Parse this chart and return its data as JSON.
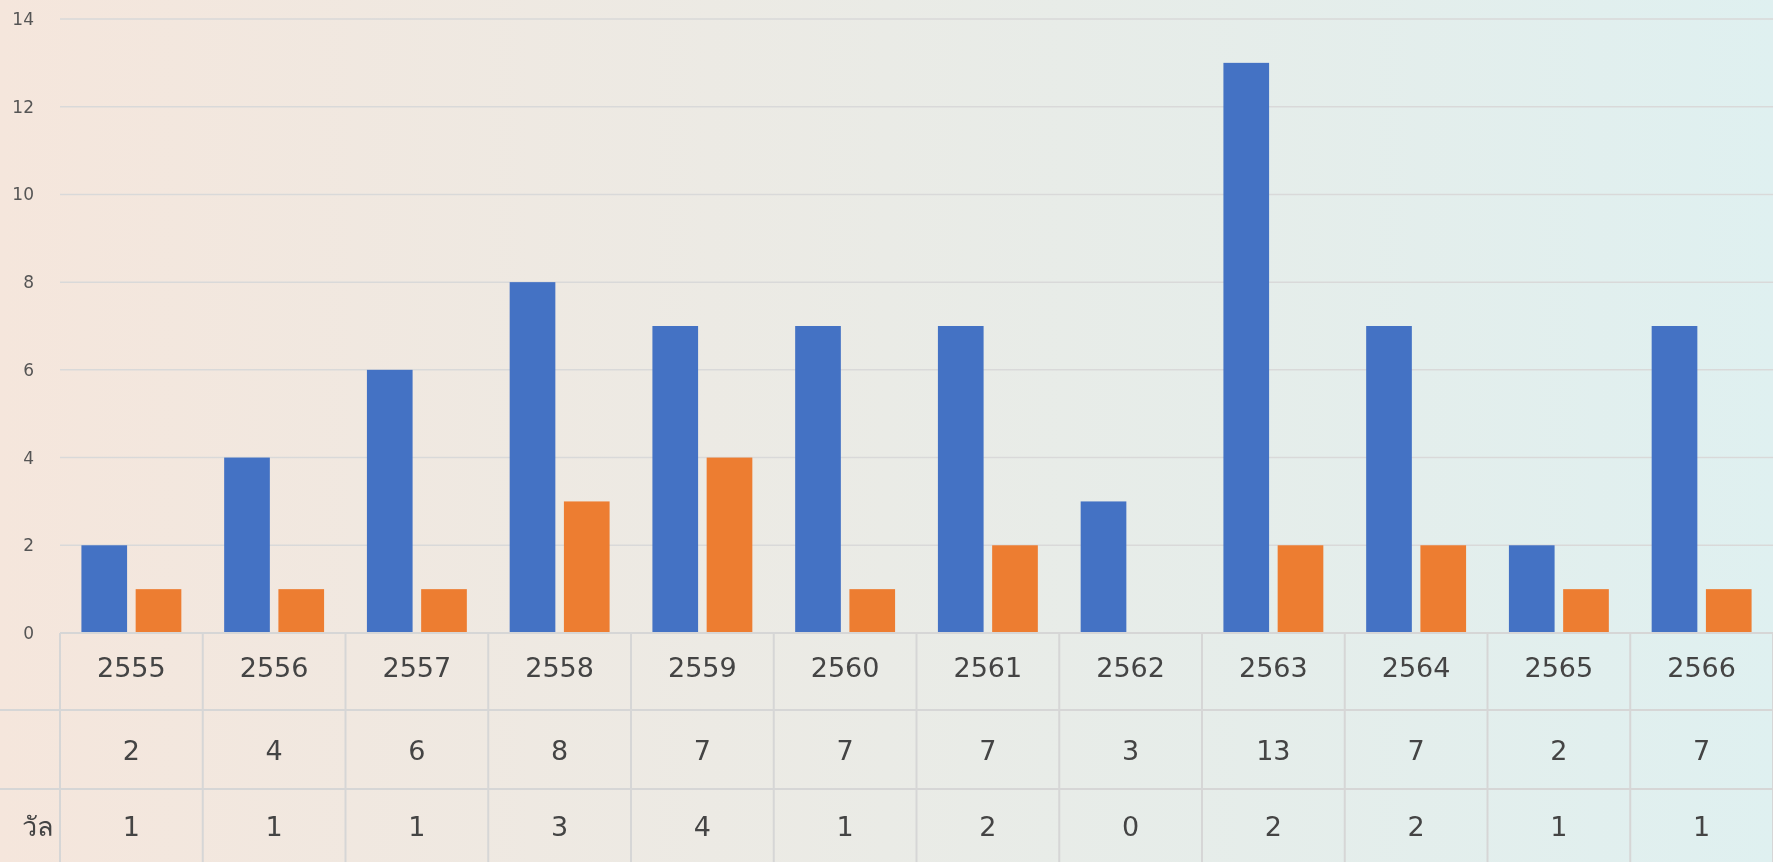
{
  "chart_data": {
    "type": "bar",
    "categories": [
      "2555",
      "2556",
      "2557",
      "2558",
      "2559",
      "2560",
      "2561",
      "2562",
      "2563",
      "2564",
      "2565",
      "2566"
    ],
    "series": [
      {
        "color": "#4472c4",
        "values": [
          2,
          4,
          6,
          8,
          7,
          7,
          7,
          3,
          13,
          7,
          2,
          7
        ]
      },
      {
        "name": "วัล",
        "color": "#ed7d31",
        "values": [
          1,
          1,
          1,
          3,
          4,
          1,
          2,
          0,
          2,
          2,
          1,
          1
        ]
      }
    ],
    "ylim": [
      0,
      14
    ],
    "yticks": [
      0,
      2,
      4,
      6,
      8,
      10,
      12,
      14
    ],
    "grid": "y",
    "data_labels": true
  }
}
